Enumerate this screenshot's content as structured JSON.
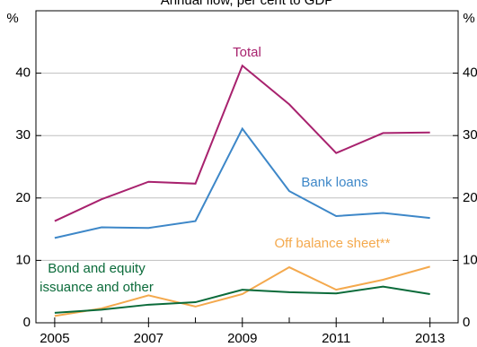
{
  "chart_data": {
    "type": "line",
    "subtitle": "Annual flow, per cent to GDP",
    "y_unit": "%",
    "x": [
      2005,
      2006,
      2007,
      2008,
      2009,
      2010,
      2011,
      2012,
      2013
    ],
    "xlim": [
      2004.6,
      2013.6
    ],
    "xticks": [
      2005,
      2007,
      2009,
      2011,
      2013
    ],
    "ylim": [
      0,
      50
    ],
    "yticks": [
      0,
      10,
      20,
      30,
      40
    ],
    "grid": true,
    "series": [
      {
        "name": "Total",
        "color": "#a8226e",
        "values": [
          16.3,
          19.8,
          22.6,
          22.3,
          41.2,
          35.0,
          27.2,
          30.4,
          30.5
        ]
      },
      {
        "name": "Bank loans",
        "color": "#3d87c8",
        "values": [
          13.6,
          15.3,
          15.2,
          16.3,
          31.1,
          21.1,
          17.1,
          17.6,
          16.8
        ]
      },
      {
        "name": "Off balance sheet**",
        "color": "#f4a94d",
        "values": [
          1.1,
          2.3,
          4.4,
          2.6,
          4.6,
          8.9,
          5.3,
          6.9,
          9.0
        ]
      },
      {
        "name": "Bond and equity issuance and other",
        "color": "#0b6b3a",
        "values": [
          1.6,
          2.1,
          2.9,
          3.3,
          5.3,
          4.9,
          4.7,
          5.8,
          4.6
        ]
      }
    ]
  }
}
